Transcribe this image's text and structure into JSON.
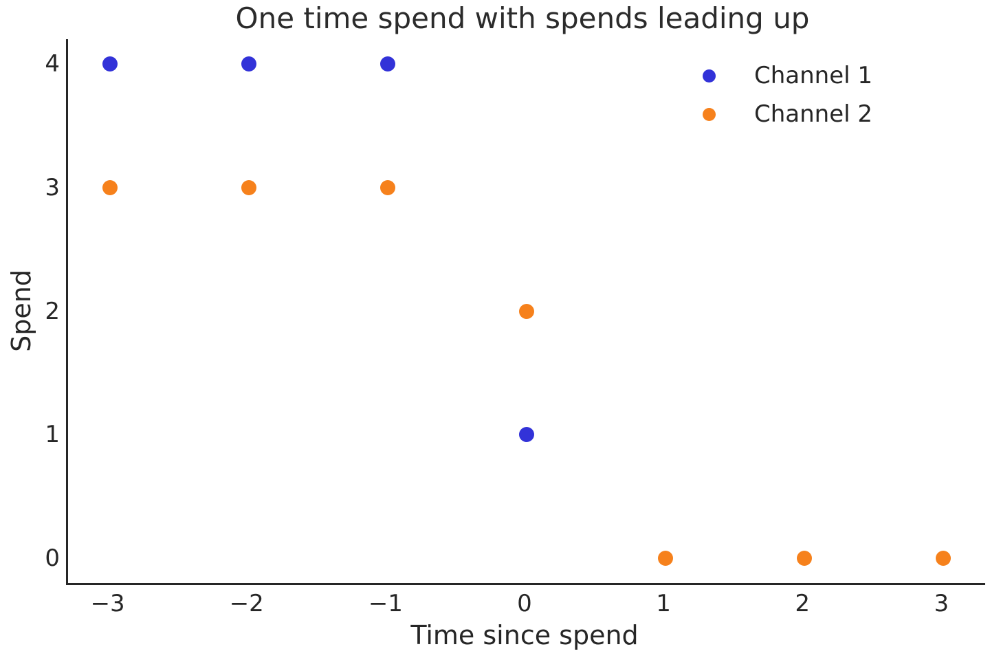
{
  "chart_data": {
    "type": "scatter",
    "title": "One time spend with spends leading up",
    "xlabel": "Time since spend",
    "ylabel": "Spend",
    "xlim": [
      -3.3,
      3.3
    ],
    "ylim": [
      -0.2,
      4.2
    ],
    "xticks": [
      -3,
      -2,
      -1,
      0,
      1,
      2,
      3
    ],
    "xtick_labels": [
      "−3",
      "−2",
      "−1",
      "0",
      "1",
      "2",
      "3"
    ],
    "yticks": [
      0,
      1,
      2,
      3,
      4
    ],
    "ytick_labels": [
      "0",
      "1",
      "2",
      "3",
      "4"
    ],
    "grid": false,
    "legend_position": "upper right",
    "background_color": "#ffffff",
    "spine_color": "#262626",
    "text_color": "#262626",
    "series": [
      {
        "name": "Channel 1",
        "color": "#3232d8",
        "points": [
          [
            -3,
            4
          ],
          [
            -2,
            4
          ],
          [
            -1,
            4
          ],
          [
            0,
            1
          ]
        ]
      },
      {
        "name": "Channel 2",
        "color": "#f6811c",
        "points": [
          [
            -3,
            3
          ],
          [
            -2,
            3
          ],
          [
            -1,
            3
          ],
          [
            0,
            2
          ],
          [
            1,
            0
          ],
          [
            2,
            0
          ],
          [
            3,
            0
          ]
        ]
      }
    ]
  }
}
